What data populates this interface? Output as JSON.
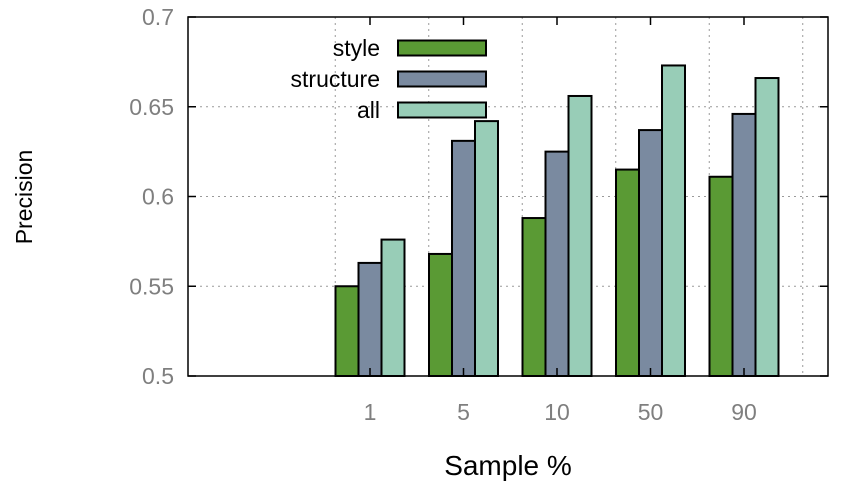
{
  "chart_data": {
    "type": "bar",
    "title": "",
    "xlabel": "Sample %",
    "ylabel": "Precision",
    "categories": [
      "1",
      "5",
      "10",
      "50",
      "90"
    ],
    "ylim": [
      0.5,
      0.7
    ],
    "yticks": [
      "0.5",
      "0.55",
      "0.6",
      "0.65",
      "0.7"
    ],
    "grid": true,
    "legend_position": "top-center",
    "series": [
      {
        "name": "style",
        "color": "#5a9a34",
        "values": [
          0.55,
          0.568,
          0.588,
          0.615,
          0.611
        ]
      },
      {
        "name": "structure",
        "color": "#7a8aa0",
        "values": [
          0.563,
          0.631,
          0.625,
          0.637,
          0.646
        ]
      },
      {
        "name": "all",
        "color": "#98cdb7",
        "values": [
          0.576,
          0.642,
          0.656,
          0.673,
          0.666
        ]
      }
    ]
  }
}
